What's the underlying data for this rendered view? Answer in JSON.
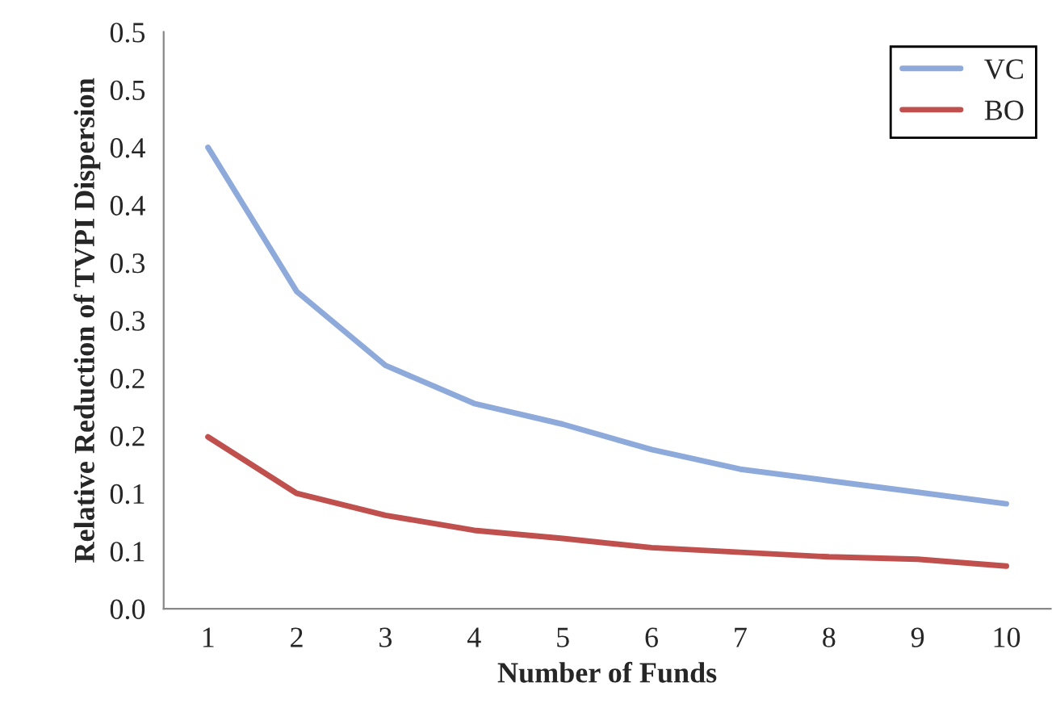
{
  "chart_data": {
    "type": "line",
    "xlabel": "Number of Funds",
    "ylabel": "Relative Reduction of TVPI Dispersion",
    "x": [
      1,
      2,
      3,
      4,
      5,
      6,
      7,
      8,
      9,
      10
    ],
    "series": [
      {
        "name": "VC",
        "color": "#8eaadb",
        "values": [
          0.4,
          0.275,
          0.211,
          0.178,
          0.16,
          0.138,
          0.121,
          0.111,
          0.101,
          0.091
        ]
      },
      {
        "name": "BO",
        "color": "#c0504d",
        "values": [
          0.149,
          0.1,
          0.081,
          0.068,
          0.061,
          0.053,
          0.049,
          0.045,
          0.043,
          0.037
        ]
      }
    ],
    "xlim": [
      0.5,
      10.5
    ],
    "xticks": [
      1,
      2,
      3,
      4,
      5,
      6,
      7,
      8,
      9,
      10
    ],
    "ylim": [
      0,
      0.5
    ],
    "yticks": [
      {
        "value": 0,
        "label": "0.0"
      },
      {
        "value": 0.05,
        "label": "0.1"
      },
      {
        "value": 0.1,
        "label": "0.1"
      },
      {
        "value": 0.15,
        "label": "0.2"
      },
      {
        "value": 0.2,
        "label": "0.2"
      },
      {
        "value": 0.25,
        "label": "0.3"
      },
      {
        "value": 0.3,
        "label": "0.3"
      },
      {
        "value": 0.35,
        "label": "0.4"
      },
      {
        "value": 0.4,
        "label": "0.4"
      },
      {
        "value": 0.45,
        "label": "0.5"
      },
      {
        "value": 0.5,
        "label": "0.5"
      }
    ],
    "legend": "top right",
    "grid": false,
    "marker": "none",
    "line_style": "solid"
  }
}
